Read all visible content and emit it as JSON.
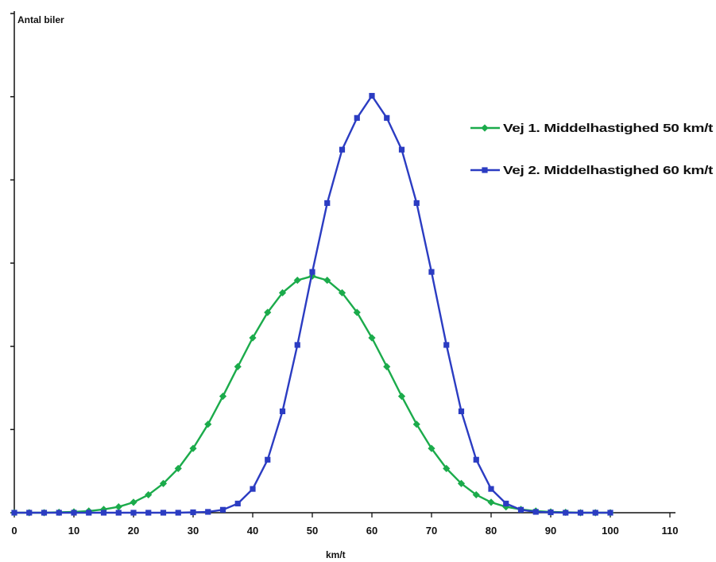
{
  "chart_data": {
    "type": "line",
    "xlabel": "km/t",
    "ylabel": "Antal biler",
    "xlim": [
      0,
      110
    ],
    "xticks": [
      0,
      10,
      20,
      30,
      40,
      50,
      60,
      70,
      80,
      90,
      100,
      110
    ],
    "ytick_count": 6,
    "ylim": [
      0,
      1.0
    ],
    "legend_position": "right",
    "x": [
      0,
      2.5,
      5,
      7.5,
      10,
      12.5,
      15,
      17.5,
      20,
      22.5,
      25,
      27.5,
      30,
      32.5,
      35,
      37.5,
      40,
      42.5,
      45,
      47.5,
      50,
      52.5,
      55,
      57.5,
      60,
      62.5,
      65,
      67.5,
      70,
      72.5,
      75,
      77.5,
      80,
      82.5,
      85,
      87.5,
      90,
      92.5,
      95,
      97.5,
      100
    ],
    "series": [
      {
        "name": "Vej 1. Middelhastighed 50 km/t",
        "color": "#1bab4b",
        "marker": "diamond",
        "values": [
          0.0,
          0.0,
          0.0,
          0.001,
          0.002,
          0.004,
          0.008,
          0.014,
          0.025,
          0.043,
          0.07,
          0.106,
          0.154,
          0.212,
          0.279,
          0.35,
          0.419,
          0.48,
          0.527,
          0.557,
          0.567,
          0.557,
          0.527,
          0.48,
          0.419,
          0.35,
          0.279,
          0.212,
          0.154,
          0.106,
          0.07,
          0.043,
          0.025,
          0.014,
          0.008,
          0.004,
          0.002,
          0.001,
          0.0,
          0.0,
          0.0
        ]
      },
      {
        "name": "Vej 2. Middelhastighed 60 km/t",
        "color": "#2b3cc2",
        "marker": "square",
        "values": [
          0.0,
          0.0,
          0.0,
          0.0,
          0.0,
          0.0,
          0.0,
          0.0,
          0.0,
          0.0,
          0.0,
          0.0,
          0.001,
          0.002,
          0.007,
          0.022,
          0.057,
          0.127,
          0.243,
          0.402,
          0.577,
          0.742,
          0.87,
          0.946,
          0.999,
          0.946,
          0.87,
          0.742,
          0.577,
          0.402,
          0.243,
          0.127,
          0.057,
          0.022,
          0.007,
          0.002,
          0.001,
          0.0,
          0.0,
          0.0,
          0.0
        ]
      }
    ]
  }
}
